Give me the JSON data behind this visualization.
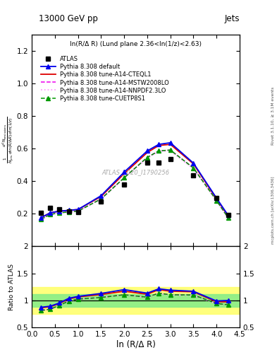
{
  "title_left": "13000 GeV pp",
  "title_right": "Jets",
  "inner_title": "ln(R/Δ R) (Lund plane 2.36<ln(1/z)<2.63)",
  "ylabel_main": "$\\frac{1}{N_{\\mathrm{jets}}}\\frac{d^2 N_{\\mathrm{emissions}}}{d\\ln(R/\\Delta R)\\,d\\ln(1/z)}$",
  "ylabel_ratio": "Ratio to ATLAS",
  "xlabel": "ln (R/Δ R)",
  "watermark": "ATLAS_2020_I1790256",
  "rivet_label": "Rivet 3.1.10, ≥ 3.1M events",
  "arxiv_label": "mcplots.cern.ch [arXiv:1306.3436]",
  "x_atlas": [
    0.2,
    0.4,
    0.6,
    0.8,
    1.0,
    1.5,
    2.0,
    2.5,
    2.75,
    3.0,
    3.5,
    4.0,
    4.25
  ],
  "y_atlas": [
    0.205,
    0.235,
    0.225,
    0.215,
    0.21,
    0.275,
    0.38,
    0.515,
    0.515,
    0.535,
    0.435,
    0.295,
    0.19
  ],
  "x_pythia": [
    0.2,
    0.4,
    0.6,
    0.8,
    1.0,
    1.5,
    2.0,
    2.5,
    2.75,
    3.0,
    3.5,
    4.0,
    4.25
  ],
  "y_default": [
    0.175,
    0.205,
    0.215,
    0.22,
    0.225,
    0.31,
    0.455,
    0.585,
    0.625,
    0.635,
    0.51,
    0.295,
    0.19
  ],
  "y_cteql1": [
    0.175,
    0.205,
    0.215,
    0.22,
    0.225,
    0.305,
    0.445,
    0.575,
    0.618,
    0.625,
    0.505,
    0.29,
    0.185
  ],
  "y_mstw": [
    0.165,
    0.195,
    0.205,
    0.21,
    0.215,
    0.29,
    0.42,
    0.545,
    0.585,
    0.59,
    0.48,
    0.28,
    0.175
  ],
  "y_nnpdf": [
    0.165,
    0.195,
    0.205,
    0.21,
    0.215,
    0.29,
    0.42,
    0.54,
    0.582,
    0.585,
    0.475,
    0.278,
    0.175
  ],
  "y_cuetp": [
    0.165,
    0.195,
    0.205,
    0.21,
    0.215,
    0.29,
    0.42,
    0.545,
    0.585,
    0.59,
    0.48,
    0.28,
    0.175
  ],
  "ratio_default": [
    0.875,
    0.895,
    0.955,
    1.04,
    1.075,
    1.13,
    1.2,
    1.135,
    1.215,
    1.19,
    1.17,
    0.99,
    1.0
  ],
  "ratio_cteql1": [
    0.865,
    0.885,
    0.945,
    1.03,
    1.065,
    1.11,
    1.17,
    1.115,
    1.2,
    1.17,
    1.16,
    0.975,
    0.975
  ],
  "ratio_mstw": [
    0.815,
    0.84,
    0.91,
    0.99,
    1.025,
    1.055,
    1.105,
    1.06,
    1.135,
    1.105,
    1.1,
    0.945,
    0.92
  ],
  "ratio_nnpdf": [
    0.815,
    0.84,
    0.91,
    0.99,
    1.025,
    1.055,
    1.105,
    1.05,
    1.13,
    1.1,
    1.09,
    0.94,
    0.92
  ],
  "ratio_cuetp": [
    0.815,
    0.84,
    0.91,
    0.99,
    1.025,
    1.055,
    1.105,
    1.06,
    1.135,
    1.105,
    1.1,
    0.945,
    0.92
  ],
  "band_yellow_lo": 0.75,
  "band_yellow_hi": 1.25,
  "band_green_lo": 0.88,
  "band_green_hi": 1.12,
  "color_default": "#0000EE",
  "color_cteql1": "#DD0000",
  "color_mstw": "#EE00EE",
  "color_nnpdf": "#FF99FF",
  "color_cuetp": "#009900",
  "color_atlas": "#000000",
  "ylim_main": [
    0.0,
    1.3
  ],
  "ylim_ratio": [
    0.5,
    2.0
  ],
  "xlim": [
    0.0,
    4.5
  ]
}
